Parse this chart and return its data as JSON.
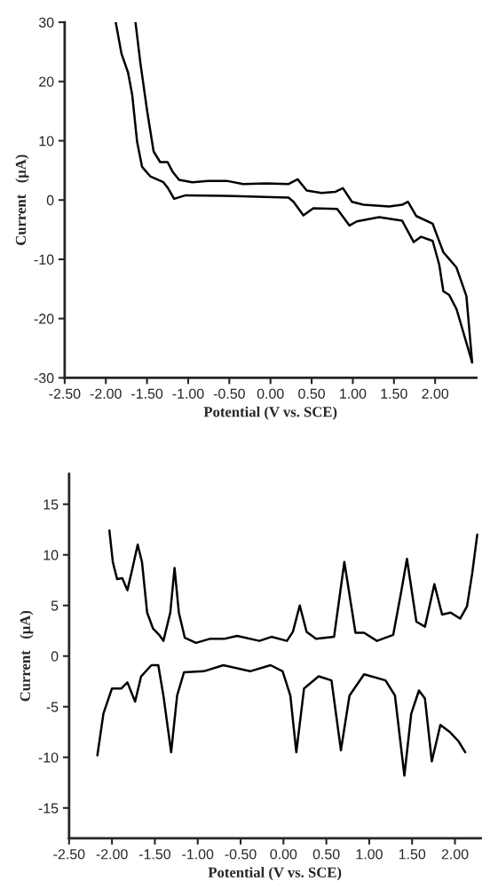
{
  "chart_data": [
    {
      "type": "line",
      "xlabel": "Potential (V vs. SCE)",
      "ylabel": "Current   (μA)",
      "xlim": [
        -2.5,
        2.5
      ],
      "ylim": [
        -30,
        30
      ],
      "xticks": [
        {
          "value": -2.5,
          "label": "-2.50"
        },
        {
          "value": -2.0,
          "label": "-2.00"
        },
        {
          "value": -1.5,
          "label": "-1.50"
        },
        {
          "value": -1.0,
          "label": "-1.00"
        },
        {
          "value": -0.5,
          "label": "-0.50"
        },
        {
          "value": 0.0,
          "label": "0.00"
        },
        {
          "value": 0.5,
          "label": "0.50"
        },
        {
          "value": 1.0,
          "label": "1.00"
        },
        {
          "value": 1.5,
          "label": "1.50"
        },
        {
          "value": 2.0,
          "label": "2.00"
        }
      ],
      "yticks": [
        -30,
        -20,
        -10,
        0,
        10,
        20,
        30
      ],
      "grid": false,
      "legend": false,
      "marker": "none",
      "line_style": "solid",
      "series": [
        {
          "color": "#000000",
          "x": [
            -1.64,
            -1.58,
            -1.5,
            -1.42,
            -1.34,
            -1.25,
            -1.19,
            -1.11,
            -0.95,
            -0.76,
            -0.52,
            -0.33,
            -0.05,
            0.22,
            0.33,
            0.44,
            0.62,
            0.79,
            0.88,
            0.99,
            1.13,
            1.44,
            1.6,
            1.67,
            1.77,
            1.97,
            2.1,
            2.26,
            2.38,
            2.45
          ],
          "values": [
            30,
            23.1,
            15.2,
            8.2,
            6.4,
            6.4,
            4.8,
            3.4,
            3.0,
            3.2,
            3.2,
            2.7,
            2.8,
            2.7,
            3.5,
            1.6,
            1.2,
            1.4,
            2.0,
            -0.3,
            -0.8,
            -1.1,
            -0.8,
            -0.3,
            -2.7,
            -4.0,
            -8.8,
            -11.4,
            -16.2,
            -27.4
          ]
        },
        {
          "color": "#000000",
          "x": [
            -1.88,
            -1.81,
            -1.73,
            -1.68,
            -1.62,
            -1.56,
            -1.46,
            -1.3,
            -1.25,
            -1.17,
            -1.03,
            -0.56,
            0.22,
            0.28,
            0.4,
            0.52,
            0.81,
            0.96,
            1.05,
            1.32,
            1.6,
            1.74,
            1.83,
            1.97,
            2.05,
            2.1,
            2.17,
            2.26,
            2.45
          ],
          "values": [
            30,
            24.7,
            21.5,
            17.8,
            9.8,
            5.6,
            4.0,
            3.0,
            2.1,
            0.2,
            0.8,
            0.7,
            0.4,
            -0.3,
            -2.6,
            -1.4,
            -1.5,
            -4.3,
            -3.6,
            -2.9,
            -3.5,
            -7.1,
            -6.2,
            -6.9,
            -10.9,
            -15.4,
            -16.0,
            -18.4,
            -27.4
          ]
        }
      ]
    },
    {
      "type": "line",
      "xlabel": "Potential (V vs. SCE)",
      "ylabel": "Current   (μA)",
      "xlim": [
        -2.5,
        2.3
      ],
      "ylim": [
        -18,
        18
      ],
      "xticks": [
        {
          "value": -2.5,
          "label": "-2.50"
        },
        {
          "value": -2.0,
          "label": "-2.00"
        },
        {
          "value": -1.5,
          "label": "-1.50"
        },
        {
          "value": -1.0,
          "label": "-1.00"
        },
        {
          "value": -0.5,
          "label": "-0.50"
        },
        {
          "value": 0.0,
          "label": "0.00"
        },
        {
          "value": 0.5,
          "label": "0.50"
        },
        {
          "value": 1.0,
          "label": "1.00"
        },
        {
          "value": 1.5,
          "label": "1.50"
        },
        {
          "value": 2.0,
          "label": "2.00"
        }
      ],
      "yticks": [
        -15,
        -10,
        -5,
        0,
        5,
        10,
        15
      ],
      "grid": false,
      "legend": false,
      "marker": "none",
      "line_style": "solid",
      "series": [
        {
          "color": "#000000",
          "x": [
            -2.03,
            -1.99,
            -1.94,
            -1.88,
            -1.82,
            -1.76,
            -1.7,
            -1.65,
            -1.59,
            -1.52,
            -1.45,
            -1.4,
            -1.32,
            -1.27,
            -1.22,
            -1.15,
            -1.02,
            -0.86,
            -0.69,
            -0.54,
            -0.28,
            -0.14,
            0.04,
            0.11,
            0.19,
            0.27,
            0.38,
            0.59,
            0.71,
            0.84,
            0.94,
            1.09,
            1.28,
            1.37,
            1.44,
            1.55,
            1.65,
            1.76,
            1.85,
            1.95,
            2.06,
            2.14,
            2.2,
            2.26
          ],
          "values": [
            12.4,
            9.3,
            7.6,
            7.7,
            6.5,
            8.7,
            11.0,
            9.3,
            4.3,
            2.7,
            2.1,
            1.5,
            4.3,
            8.7,
            4.3,
            1.8,
            1.3,
            1.7,
            1.7,
            2.0,
            1.5,
            1.9,
            1.5,
            2.4,
            5.0,
            2.4,
            1.7,
            1.9,
            9.3,
            2.3,
            2.3,
            1.5,
            2.1,
            6.2,
            9.6,
            3.4,
            2.9,
            7.1,
            4.1,
            4.3,
            3.7,
            4.9,
            8.1,
            12.0
          ]
        },
        {
          "color": "#000000",
          "x": [
            -2.17,
            -2.1,
            -2.0,
            -1.89,
            -1.82,
            -1.73,
            -1.66,
            -1.54,
            -1.46,
            -1.4,
            -1.31,
            -1.24,
            -1.16,
            -0.93,
            -0.7,
            -0.39,
            -0.15,
            -0.01,
            0.08,
            0.15,
            0.24,
            0.41,
            0.56,
            0.67,
            0.77,
            0.94,
            1.19,
            1.3,
            1.41,
            1.49,
            1.58,
            1.65,
            1.73,
            1.83,
            1.94,
            2.04,
            2.12
          ],
          "values": [
            -9.8,
            -5.7,
            -3.2,
            -3.2,
            -2.6,
            -4.5,
            -2.0,
            -0.9,
            -0.9,
            -3.9,
            -9.5,
            -3.9,
            -1.6,
            -1.5,
            -0.9,
            -1.5,
            -0.9,
            -1.5,
            -3.9,
            -9.5,
            -3.2,
            -2.0,
            -2.4,
            -9.3,
            -3.9,
            -1.8,
            -2.4,
            -3.9,
            -11.8,
            -5.7,
            -3.4,
            -4.2,
            -10.4,
            -6.8,
            -7.5,
            -8.4,
            -9.5
          ]
        }
      ]
    }
  ]
}
